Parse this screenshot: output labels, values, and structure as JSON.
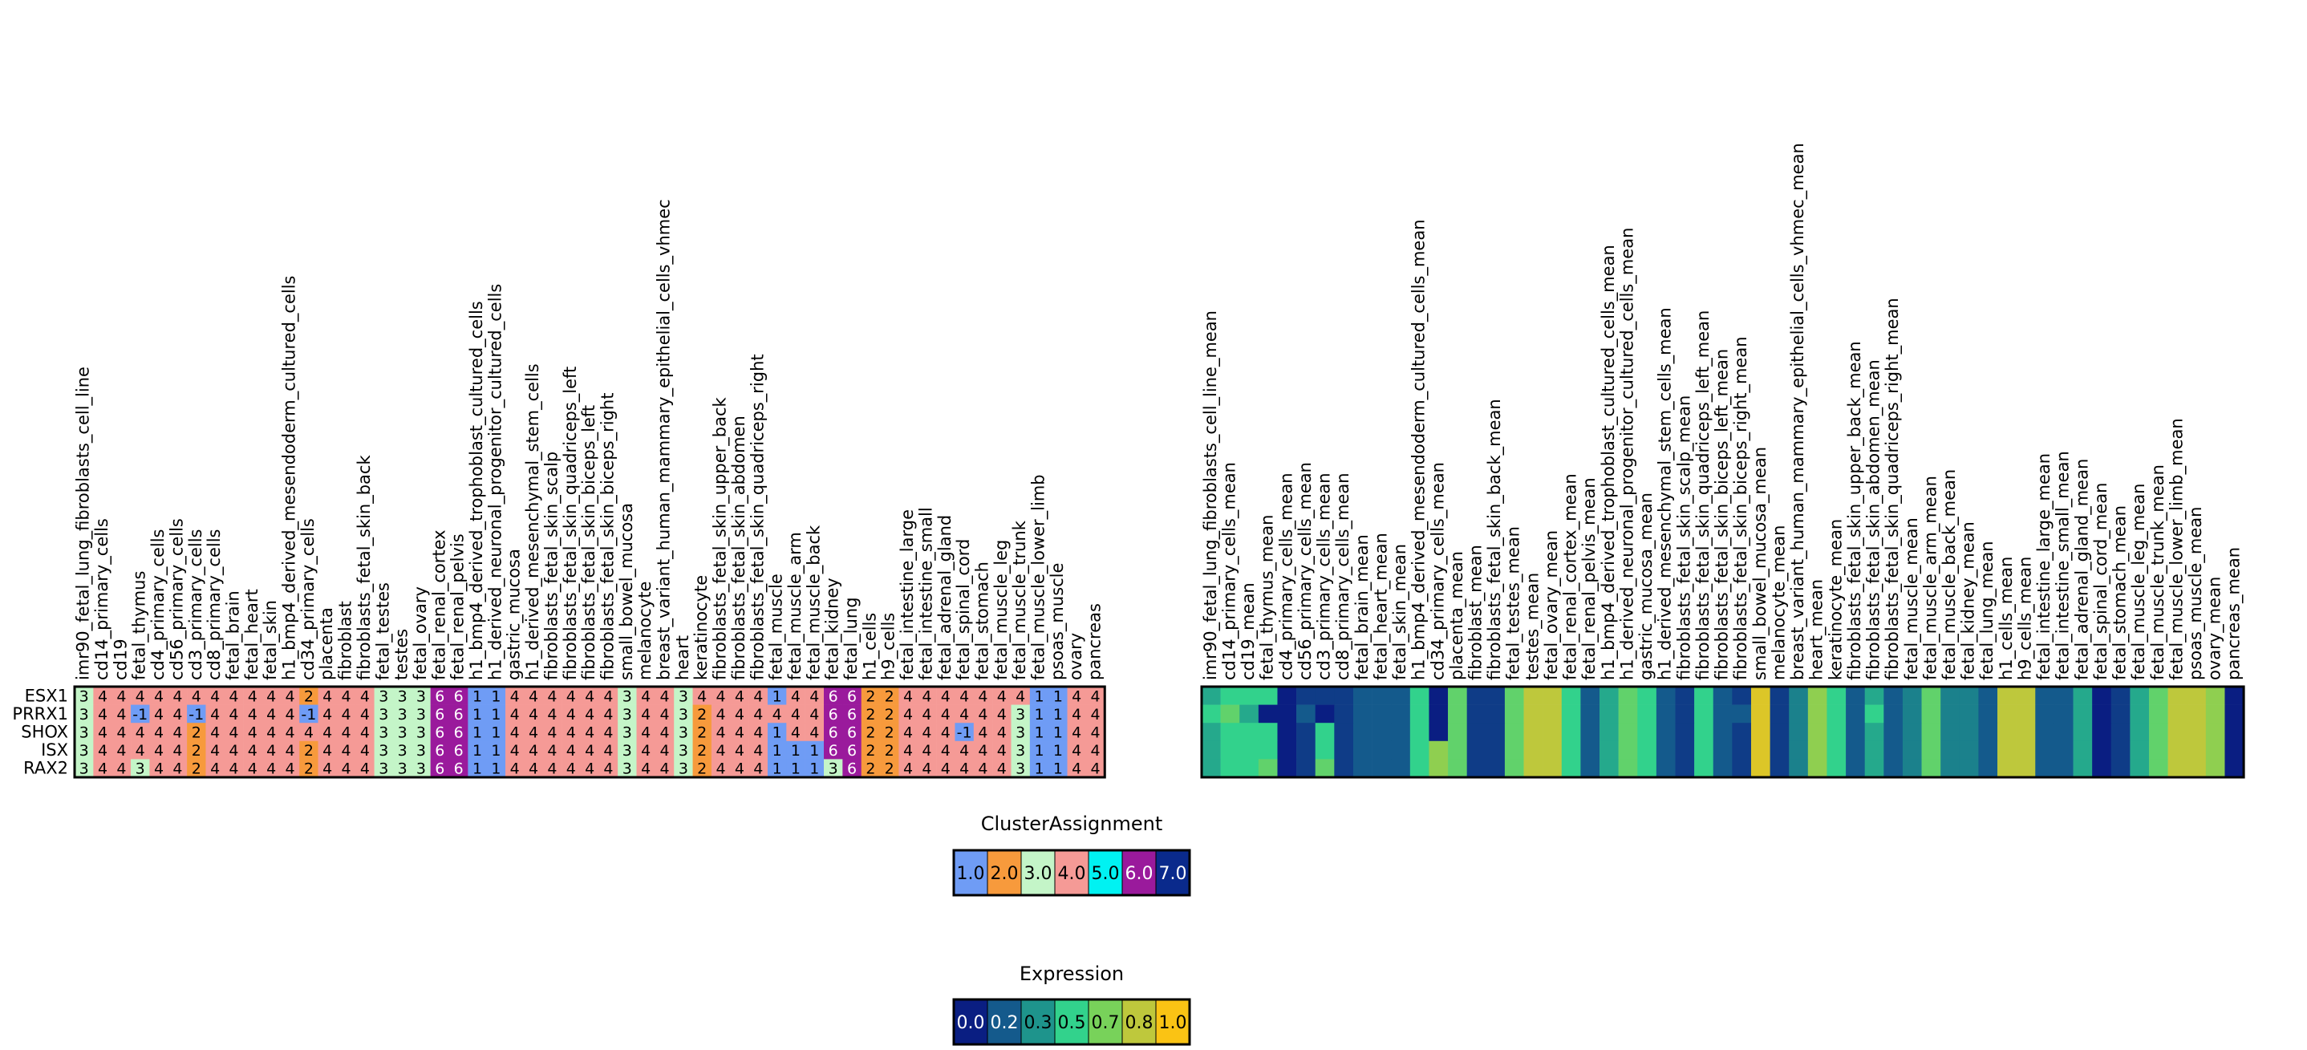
{
  "chart_data": [
    {
      "type": "heatmap",
      "title": "",
      "value_label": "ClusterAssignment",
      "rows": [
        "ESX1",
        "PRRX1",
        "SHOX",
        "ISX",
        "RAX2"
      ],
      "columns": [
        "imr90_fetal_lung_fibroblasts_cell_line",
        "cd14_primary_cells",
        "cd19",
        "fetal_thymus",
        "cd4_primary_cells",
        "cd56_primary_cells",
        "cd3_primary_cells",
        "cd8_primary_cells",
        "fetal_brain",
        "fetal_heart",
        "fetal_skin",
        "h1_bmp4_derived_mesendoderm_cultured_cells",
        "cd34_primary_cells",
        "placenta",
        "fibroblast",
        "fibroblasts_fetal_skin_back",
        "fetal_testes",
        "testes",
        "fetal_ovary",
        "fetal_renal_cortex",
        "fetal_renal_pelvis",
        "h1_bmp4_derived_trophoblast_cultured_cells",
        "h1_derived_neuronal_progenitor_cultured_cells",
        "gastric_mucosa",
        "h1_derived_mesenchymal_stem_cells",
        "fibroblasts_fetal_skin_scalp",
        "fibroblasts_fetal_skin_quadriceps_left",
        "fibroblasts_fetal_skin_biceps_left",
        "fibroblasts_fetal_skin_biceps_right",
        "small_bowel_mucosa",
        "melanocyte",
        "breast_variant_human_mammary_epithelial_cells_vhmec",
        "heart",
        "keratinocyte",
        "fibroblasts_fetal_skin_upper_back",
        "fibroblasts_fetal_skin_abdomen",
        "fibroblasts_fetal_skin_quadriceps_right",
        "fetal_muscle",
        "fetal_muscle_arm",
        "fetal_muscle_back",
        "fetal_kidney",
        "fetal_lung",
        "h1_cells",
        "h9_cells",
        "fetal_intestine_large",
        "fetal_intestine_small",
        "fetal_adrenal_gland",
        "fetal_spinal_cord",
        "fetal_stomach",
        "fetal_muscle_leg",
        "fetal_muscle_trunk",
        "fetal_muscle_lower_limb",
        "psoas_muscle",
        "ovary",
        "pancreas"
      ],
      "values": [
        [
          3,
          4,
          4,
          4,
          4,
          4,
          4,
          4,
          4,
          4,
          4,
          4,
          2,
          4,
          4,
          4,
          3,
          3,
          3,
          6,
          6,
          1,
          1,
          4,
          4,
          4,
          4,
          4,
          4,
          3,
          4,
          4,
          3,
          4,
          4,
          4,
          4,
          1,
          4,
          4,
          6,
          6,
          2,
          2,
          4,
          4,
          4,
          4,
          4,
          4,
          4,
          1,
          1,
          4,
          4
        ],
        [
          3,
          4,
          4,
          -1,
          4,
          4,
          -1,
          4,
          4,
          4,
          4,
          4,
          -1,
          4,
          4,
          4,
          3,
          3,
          3,
          6,
          6,
          1,
          1,
          4,
          4,
          4,
          4,
          4,
          4,
          3,
          4,
          4,
          3,
          2,
          4,
          4,
          4,
          4,
          4,
          4,
          6,
          6,
          2,
          2,
          4,
          4,
          4,
          4,
          4,
          4,
          3,
          1,
          1,
          4,
          4
        ],
        [
          3,
          4,
          4,
          4,
          4,
          4,
          2,
          4,
          4,
          4,
          4,
          4,
          4,
          4,
          4,
          4,
          3,
          3,
          3,
          6,
          6,
          1,
          1,
          4,
          4,
          4,
          4,
          4,
          4,
          3,
          4,
          4,
          3,
          2,
          4,
          4,
          4,
          1,
          4,
          4,
          6,
          6,
          2,
          2,
          4,
          4,
          4,
          -1,
          4,
          4,
          3,
          1,
          1,
          4,
          4
        ],
        [
          3,
          4,
          4,
          4,
          4,
          4,
          2,
          4,
          4,
          4,
          4,
          4,
          2,
          4,
          4,
          4,
          3,
          3,
          3,
          6,
          6,
          1,
          1,
          4,
          4,
          4,
          4,
          4,
          4,
          3,
          4,
          4,
          3,
          2,
          4,
          4,
          4,
          1,
          1,
          1,
          6,
          6,
          2,
          2,
          4,
          4,
          4,
          4,
          4,
          4,
          3,
          1,
          1,
          4,
          4
        ],
        [
          3,
          4,
          4,
          3,
          4,
          4,
          2,
          4,
          4,
          4,
          4,
          4,
          2,
          4,
          4,
          4,
          3,
          3,
          3,
          6,
          6,
          1,
          1,
          4,
          4,
          4,
          4,
          4,
          4,
          3,
          4,
          4,
          3,
          2,
          4,
          4,
          4,
          1,
          1,
          1,
          3,
          6,
          2,
          2,
          4,
          4,
          4,
          4,
          4,
          4,
          3,
          1,
          1,
          4,
          4
        ]
      ],
      "colors": {
        "-1": "#6f9cf5",
        "1": "#6f9cf5",
        "2": "#f79a3c",
        "3": "#c4f5c8",
        "4": "#f59a96",
        "5": "#00f2f2",
        "6": "#9a1a9c",
        "7": "#0a2a8c"
      },
      "legend": {
        "title": "ClusterAssignment",
        "labels": [
          "1.0",
          "2.0",
          "3.0",
          "4.0",
          "5.0",
          "6.0",
          "7.0"
        ],
        "colors": [
          "#6f9cf5",
          "#f79a3c",
          "#c4f5c8",
          "#f59a96",
          "#00f2f2",
          "#9a1a9c",
          "#0a2a8c"
        ]
      }
    },
    {
      "type": "heatmap",
      "title": "",
      "value_label": "Expression",
      "rows": [
        "ESX1",
        "PRRX1",
        "SHOX",
        "ISX",
        "RAX2"
      ],
      "columns": [
        "imr90_fetal_lung_fibroblasts_cell_line_mean",
        "cd14_primary_cells_mean",
        "cd19_mean",
        "fetal_thymus_mean",
        "cd4_primary_cells_mean",
        "cd56_primary_cells_mean",
        "cd3_primary_cells_mean",
        "cd8_primary_cells_mean",
        "fetal_brain_mean",
        "fetal_heart_mean",
        "fetal_skin_mean",
        "h1_bmp4_derived_mesendoderm_cultured_cells_mean",
        "cd34_primary_cells_mean",
        "placenta_mean",
        "fibroblast_mean",
        "fibroblasts_fetal_skin_back_mean",
        "fetal_testes_mean",
        "testes_mean",
        "fetal_ovary_mean",
        "fetal_renal_cortex_mean",
        "fetal_renal_pelvis_mean",
        "h1_bmp4_derived_trophoblast_cultured_cells_mean",
        "h1_derived_neuronal_progenitor_cultured_cells_mean",
        "gastric_mucosa_mean",
        "h1_derived_mesenchymal_stem_cells_mean",
        "fibroblasts_fetal_skin_scalp_mean",
        "fibroblasts_fetal_skin_quadriceps_left_mean",
        "fibroblasts_fetal_skin_biceps_left_mean",
        "fibroblasts_fetal_skin_biceps_right_mean",
        "small_bowel_mucosa_mean",
        "melanocyte_mean",
        "breast_variant_human_mammary_epithelial_cells_vhmec_mean",
        "heart_mean",
        "keratinocyte_mean",
        "fibroblasts_fetal_skin_upper_back_mean",
        "fibroblasts_fetal_skin_abdomen_mean",
        "fibroblasts_fetal_skin_quadriceps_right_mean",
        "fetal_muscle_mean",
        "fetal_muscle_arm_mean",
        "fetal_muscle_back_mean",
        "fetal_kidney_mean",
        "fetal_lung_mean",
        "h1_cells_mean",
        "h9_cells_mean",
        "fetal_intestine_large_mean",
        "fetal_intestine_small_mean",
        "fetal_adrenal_gland_mean",
        "fetal_spinal_cord_mean",
        "fetal_stomach_mean",
        "fetal_muscle_leg_mean",
        "fetal_muscle_trunk_mean",
        "fetal_muscle_lower_limb_mean",
        "psoas_muscle_mean",
        "ovary_mean",
        "pancreas_mean"
      ],
      "values": [
        [
          0.4,
          0.5,
          0.5,
          0.5,
          0.0,
          0.1,
          0.1,
          0.1,
          0.2,
          0.2,
          0.2,
          0.5,
          0.0,
          0.6,
          0.1,
          0.1,
          0.6,
          0.8,
          0.8,
          0.5,
          0.2,
          0.4,
          0.6,
          0.5,
          0.2,
          0.1,
          0.5,
          0.2,
          0.1,
          0.9,
          0.1,
          0.3,
          0.7,
          0.5,
          0.2,
          0.4,
          0.2,
          0.3,
          0.6,
          0.3,
          0.3,
          0.2,
          0.8,
          0.8,
          0.2,
          0.2,
          0.4,
          0.0,
          0.1,
          0.4,
          0.6,
          0.8,
          0.8,
          0.7,
          0.0
        ],
        [
          0.5,
          0.6,
          0.4,
          0.0,
          0.0,
          0.2,
          0.0,
          0.1,
          0.2,
          0.2,
          0.2,
          0.5,
          0.0,
          0.6,
          0.1,
          0.1,
          0.6,
          0.8,
          0.8,
          0.5,
          0.2,
          0.4,
          0.6,
          0.5,
          0.2,
          0.1,
          0.5,
          0.2,
          0.2,
          0.9,
          0.1,
          0.3,
          0.7,
          0.5,
          0.2,
          0.5,
          0.2,
          0.3,
          0.6,
          0.3,
          0.3,
          0.2,
          0.8,
          0.8,
          0.2,
          0.2,
          0.4,
          0.0,
          0.1,
          0.4,
          0.6,
          0.8,
          0.8,
          0.7,
          0.0
        ],
        [
          0.4,
          0.5,
          0.5,
          0.5,
          0.0,
          0.1,
          0.5,
          0.1,
          0.2,
          0.2,
          0.2,
          0.5,
          0.0,
          0.6,
          0.1,
          0.1,
          0.6,
          0.8,
          0.8,
          0.5,
          0.2,
          0.4,
          0.6,
          0.5,
          0.2,
          0.1,
          0.5,
          0.2,
          0.1,
          0.9,
          0.1,
          0.3,
          0.7,
          0.5,
          0.2,
          0.4,
          0.2,
          0.3,
          0.6,
          0.3,
          0.3,
          0.2,
          0.8,
          0.8,
          0.2,
          0.2,
          0.4,
          0.0,
          0.1,
          0.4,
          0.6,
          0.8,
          0.8,
          0.7,
          0.0
        ],
        [
          0.4,
          0.5,
          0.5,
          0.5,
          0.0,
          0.1,
          0.5,
          0.1,
          0.2,
          0.2,
          0.2,
          0.5,
          0.7,
          0.6,
          0.1,
          0.1,
          0.6,
          0.8,
          0.8,
          0.5,
          0.2,
          0.4,
          0.6,
          0.5,
          0.2,
          0.1,
          0.5,
          0.2,
          0.1,
          0.9,
          0.1,
          0.3,
          0.7,
          0.5,
          0.2,
          0.4,
          0.2,
          0.3,
          0.6,
          0.3,
          0.3,
          0.2,
          0.8,
          0.8,
          0.2,
          0.2,
          0.4,
          0.0,
          0.1,
          0.4,
          0.6,
          0.8,
          0.8,
          0.7,
          0.0
        ],
        [
          0.4,
          0.5,
          0.5,
          0.6,
          0.0,
          0.1,
          0.6,
          0.1,
          0.2,
          0.2,
          0.2,
          0.5,
          0.7,
          0.6,
          0.1,
          0.1,
          0.6,
          0.8,
          0.8,
          0.5,
          0.2,
          0.4,
          0.6,
          0.5,
          0.2,
          0.1,
          0.5,
          0.2,
          0.1,
          0.9,
          0.1,
          0.3,
          0.7,
          0.5,
          0.2,
          0.4,
          0.2,
          0.3,
          0.6,
          0.3,
          0.3,
          0.2,
          0.8,
          0.8,
          0.2,
          0.2,
          0.4,
          0.0,
          0.1,
          0.4,
          0.6,
          0.8,
          0.8,
          0.7,
          0.0
        ]
      ],
      "legend": {
        "title": "Expression",
        "labels": [
          "0.0",
          "0.2",
          "0.3",
          "0.5",
          "0.7",
          "0.8",
          "1.0"
        ],
        "colors": [
          "#0a1e82",
          "#145a8c",
          "#1e948c",
          "#32d28c",
          "#78d25a",
          "#bec83c",
          "#fac314"
        ]
      }
    }
  ]
}
